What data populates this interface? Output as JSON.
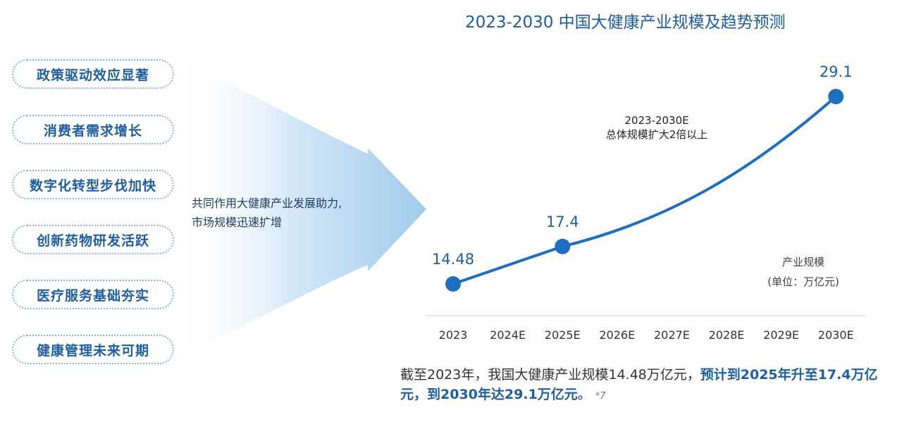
{
  "factors": [
    "政策驱动效应显著",
    "消费者需求增长",
    "数字化转型步伐加快",
    "创新药物研发活跃",
    "医疗服务基础夯实",
    "健康管理未来可期"
  ],
  "arrow_text": [
    "共同作用大健康产业发展助力,",
    "市场规模迅速扩增"
  ],
  "chart_data": {
    "type": "line",
    "title": "2023-2030 中国大健康产业规模及趋势预测",
    "categories": [
      "2023",
      "2024E",
      "2025E",
      "2026E",
      "2027E",
      "2028E",
      "2029E",
      "2030E"
    ],
    "series": [
      {
        "values": [
          14.48,
          null,
          17.4,
          null,
          null,
          null,
          null,
          29.1
        ]
      }
    ],
    "point_labels": [
      "14.48",
      "17.4",
      "29.1"
    ],
    "annotation": [
      "2023-2030E",
      "总体规模扩大2倍以上"
    ],
    "unit": [
      "产业规模",
      "(单位：万亿元)"
    ],
    "color": "#1f6ebf"
  },
  "footer": {
    "plain": "截至2023年，我国大健康产业规模14.48万亿元，",
    "highlight": "预计到2025年升至17.4万亿元，到2030年达29.1万亿元",
    "end": "。",
    "ref": "*7"
  }
}
